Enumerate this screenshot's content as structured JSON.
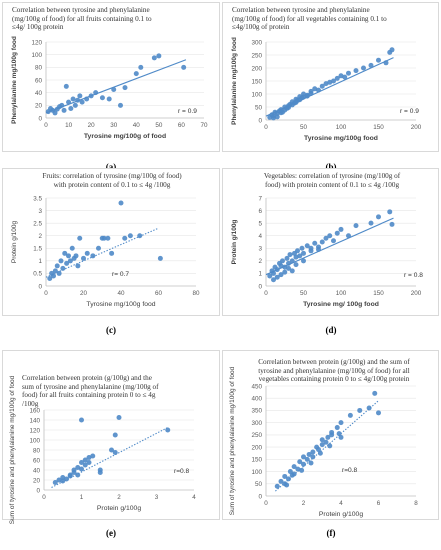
{
  "colors": {
    "point": "#4f8ac8",
    "trend": "#4f8ac8",
    "axis": "#bfbfbf",
    "grid": "#e6e6e6",
    "text": "#595959"
  },
  "panels": [
    {
      "id": "a",
      "caption": "(a)",
      "title": "Correlation between tyrosine and phenylalanine\n(mg/100g of food) for all fruits containing 0.1 to\n≤4g/ 100g protein",
      "chart_data": {
        "type": "scatter",
        "title": "Correlation between tyrosine and phenylalanine (mg/100g of food) for all fruits containing 0.1 to ≤4g/ 100g protein",
        "xlabel": "Tyrosine mg/100g of food",
        "ylabel": "Phenylalanine mg/100g food",
        "xlim": [
          0,
          70
        ],
        "ylim": [
          0,
          120
        ],
        "xticks": [
          "0",
          "10",
          "20",
          "30",
          "40",
          "50",
          "60",
          "70"
        ],
        "yticks": [
          "0",
          "20",
          "40",
          "60",
          "80",
          "100",
          "120"
        ],
        "annotation": "r = 0.9",
        "grid": true,
        "trendline": "solid",
        "trend": [
          [
            0,
            8
          ],
          [
            62,
            92
          ]
        ],
        "x": [
          1,
          2,
          3,
          4,
          5,
          6,
          7,
          8,
          9,
          10,
          11,
          12,
          13,
          14,
          15,
          16,
          18,
          20,
          22,
          25,
          28,
          30,
          33,
          35,
          40,
          42,
          48,
          50,
          61
        ],
        "y": [
          10,
          15,
          12,
          8,
          14,
          18,
          20,
          12,
          50,
          25,
          15,
          30,
          20,
          28,
          35,
          25,
          30,
          35,
          40,
          32,
          30,
          45,
          20,
          48,
          70,
          80,
          95,
          98,
          80
        ]
      }
    },
    {
      "id": "b",
      "caption": "(b)",
      "title": "Correlation between tyrosine and phenylalanine\n(mg/100g of food) for all vegetables containing 0.1 to\n≤4g/100g of protein",
      "chart_data": {
        "type": "scatter",
        "title": "Correlation between tyrosine and phenylalanine (mg/100g of food) for all vegetables containing 0.1 to ≤4g/100g of protein",
        "xlabel": "Tyrosine mg/100g food",
        "ylabel": "Phenylalanine mg/100g food",
        "xlim": [
          0,
          200
        ],
        "ylim": [
          0,
          300
        ],
        "xticks": [
          "0",
          "50",
          "100",
          "150",
          "200"
        ],
        "yticks": [
          "0",
          "50",
          "100",
          "150",
          "200",
          "250",
          "300"
        ],
        "annotation": "r = 0.9",
        "grid": true,
        "trendline": "solid",
        "trend": [
          [
            0,
            15
          ],
          [
            170,
            240
          ]
        ],
        "x": [
          5,
          8,
          10,
          12,
          15,
          18,
          20,
          22,
          25,
          28,
          30,
          32,
          35,
          38,
          40,
          42,
          45,
          48,
          50,
          55,
          60,
          65,
          70,
          75,
          80,
          85,
          90,
          95,
          100,
          105,
          110,
          120,
          130,
          140,
          150,
          160,
          165,
          168,
          10,
          15,
          20,
          25,
          30,
          35,
          40,
          45,
          50,
          55,
          60
        ],
        "y": [
          10,
          20,
          15,
          30,
          25,
          35,
          40,
          30,
          50,
          45,
          55,
          60,
          70,
          65,
          80,
          75,
          90,
          85,
          100,
          95,
          110,
          120,
          115,
          130,
          140,
          145,
          150,
          160,
          170,
          165,
          180,
          190,
          200,
          210,
          230,
          220,
          260,
          270,
          8,
          12,
          28,
          38,
          48,
          58,
          68,
          78,
          88,
          92,
          102
        ]
      }
    },
    {
      "id": "c",
      "caption": "(c)",
      "title": "Fruits: correlation of tyrosine (mg/100g of food)\nwith protein content of 0.1 to ≤ 4g /100g",
      "chart_data": {
        "type": "scatter",
        "title": "Fruits: correlation of tyrosine (mg/100g of food) with protein content of 0.1 to ≤ 4g /100g",
        "xlabel": "Tyrosine mg/100g food",
        "ylabel": "Protein g/100g",
        "xlim": [
          0,
          80
        ],
        "ylim": [
          0,
          3.5
        ],
        "xticks": [
          "0",
          "20",
          "40",
          "60",
          "80"
        ],
        "yticks": [
          "0",
          "0.5",
          "1",
          "1.5",
          "2",
          "2.5",
          "3",
          "3.5"
        ],
        "annotation": "r= 0.7",
        "grid": true,
        "trendline": "dotted",
        "trend": [
          [
            0,
            0.35
          ],
          [
            60,
            2.3
          ]
        ],
        "x": [
          2,
          3,
          4,
          5,
          6,
          7,
          8,
          9,
          10,
          11,
          12,
          13,
          14,
          15,
          16,
          17,
          18,
          20,
          22,
          25,
          28,
          30,
          31,
          33,
          35,
          40,
          42,
          45,
          50,
          61
        ],
        "y": [
          0.3,
          0.5,
          0.4,
          0.6,
          0.8,
          0.5,
          1.0,
          0.7,
          1.3,
          0.9,
          1.2,
          1.0,
          1.5,
          1.1,
          1.2,
          0.8,
          1.9,
          1.1,
          1.3,
          1.2,
          1.5,
          1.9,
          1.9,
          1.9,
          1.3,
          3.3,
          1.9,
          2.0,
          2.0,
          1.1
        ]
      }
    },
    {
      "id": "d",
      "caption": "(d)",
      "title": "Vegetables: correlation of tyrosine (mg/100g of\nfood) with protein content of  0.1 to ≤ 4g /100g",
      "chart_data": {
        "type": "scatter",
        "title": "Vegetables: correlation of tyrosine (mg/100g of food) with protein content of 0.1 to ≤ 4g /100g",
        "xlabel": "Tyrosine mg/ 100g food",
        "ylabel": "Protein g/100g",
        "xlim": [
          0,
          200
        ],
        "ylim": [
          0,
          7
        ],
        "xticks": [
          "0",
          "50",
          "100",
          "150",
          "200"
        ],
        "yticks": [
          "0",
          "1",
          "2",
          "3",
          "4",
          "5",
          "6",
          "7"
        ],
        "annotation": "r = 0.8",
        "grid": true,
        "trendline": "solid",
        "trend": [
          [
            0,
            0.9
          ],
          [
            170,
            5.4
          ]
        ],
        "x": [
          5,
          8,
          10,
          12,
          15,
          18,
          20,
          22,
          25,
          28,
          30,
          32,
          35,
          38,
          40,
          42,
          45,
          48,
          50,
          55,
          60,
          65,
          70,
          75,
          80,
          85,
          90,
          95,
          100,
          110,
          120,
          140,
          150,
          165,
          168,
          10,
          15,
          20,
          25,
          30,
          35,
          40,
          50,
          60,
          70
        ],
        "y": [
          0.8,
          1.2,
          1.0,
          1.5,
          1.3,
          1.8,
          1.6,
          2.0,
          1.5,
          2.2,
          1.8,
          2.5,
          2.0,
          2.6,
          2.3,
          2.8,
          2.4,
          3.0,
          2.6,
          3.2,
          3.0,
          3.4,
          3.1,
          3.5,
          3.8,
          4.0,
          3.6,
          4.2,
          4.5,
          4.0,
          4.8,
          5.0,
          5.5,
          5.9,
          4.9,
          0.5,
          0.7,
          0.9,
          1.1,
          1.4,
          1.2,
          1.7,
          2.0,
          2.8,
          2.9
        ]
      }
    },
    {
      "id": "e",
      "caption": "(e)",
      "title": "Correlation between protein (g/100g) and the\nsum of tyrosine and phenylalanine (mg/100g of\nfood) for all fruits containing protein 0 to ≤ 4g\n/100g",
      "chart_data": {
        "type": "scatter",
        "title": "Correlation between protein (g/100g) and the sum of tyrosine and phenylalanine (mg/100g of food) for all fruits containing protein 0 to ≤ 4g /100g",
        "xlabel": "Protein g/100g",
        "ylabel": "Sum of tyrosine and phenylalanine mg/100g of food",
        "xlim": [
          0,
          4
        ],
        "ylim": [
          0,
          160
        ],
        "xticks": [
          "0",
          "1",
          "2",
          "3",
          "4"
        ],
        "yticks": [
          "0",
          "20",
          "40",
          "60",
          "80",
          "100",
          "120",
          "140",
          "160"
        ],
        "annotation": "r=0.8",
        "grid": true,
        "trendline": "dotted",
        "trend": [
          [
            0.2,
            5
          ],
          [
            3.3,
            125
          ]
        ],
        "x": [
          0.3,
          0.4,
          0.5,
          0.5,
          0.6,
          0.7,
          0.7,
          0.8,
          0.8,
          0.9,
          0.9,
          1.0,
          1.0,
          1.0,
          1.1,
          1.1,
          1.2,
          1.2,
          1.3,
          1.5,
          1.5,
          1.8,
          1.9,
          1.9,
          2.0,
          3.3
        ],
        "y": [
          15,
          20,
          18,
          25,
          22,
          30,
          28,
          35,
          40,
          30,
          45,
          55,
          42,
          140,
          50,
          60,
          65,
          55,
          68,
          40,
          35,
          80,
          75,
          110,
          145,
          120
        ]
      }
    },
    {
      "id": "f",
      "caption": "(f)",
      "title": "Correlation between protein (g/100g) and the sum of\ntyrosine and phenylalanine (mg/100g of food) for all\nvegetables containing protein 0 to ≤ 4g/100g protein",
      "chart_data": {
        "type": "scatter",
        "title": "Correlation between protein (g/100g) and the sum of tyrosine and phenylalanine (mg/100g of food) for all vegetables containing protein 0 to ≤ 4g/100g protein",
        "xlabel": "Protein g/100g",
        "ylabel": "Sum of tyrosine and phenylalanine mg/100g of food",
        "xlim": [
          0,
          8
        ],
        "ylim": [
          0,
          450
        ],
        "xticks": [
          "0",
          "2",
          "4",
          "6",
          "8"
        ],
        "yticks": [
          "0",
          "50",
          "100",
          "150",
          "200",
          "250",
          "300",
          "350",
          "400",
          "450"
        ],
        "annotation": "r=0.8",
        "grid": true,
        "trendline": "dotted",
        "trend": [
          [
            0.5,
            20
          ],
          [
            6,
            390
          ]
        ],
        "x": [
          0.6,
          0.8,
          1.0,
          1.0,
          1.2,
          1.3,
          1.5,
          1.5,
          1.7,
          1.8,
          2.0,
          2.0,
          2.2,
          2.3,
          2.5,
          2.5,
          2.7,
          2.8,
          3.0,
          3.0,
          3.2,
          3.3,
          3.5,
          3.5,
          3.8,
          4.0,
          4.0,
          4.5,
          5.0,
          5.5,
          5.8,
          6.0,
          1.1,
          1.4,
          1.9,
          2.4,
          2.9,
          3.4,
          3.9
        ],
        "y": [
          40,
          60,
          50,
          80,
          70,
          100,
          90,
          120,
          110,
          140,
          130,
          160,
          150,
          170,
          180,
          160,
          200,
          190,
          210,
          230,
          220,
          240,
          260,
          250,
          280,
          300,
          240,
          330,
          350,
          360,
          420,
          340,
          45,
          85,
          105,
          135,
          175,
          205,
          255
        ]
      }
    }
  ]
}
